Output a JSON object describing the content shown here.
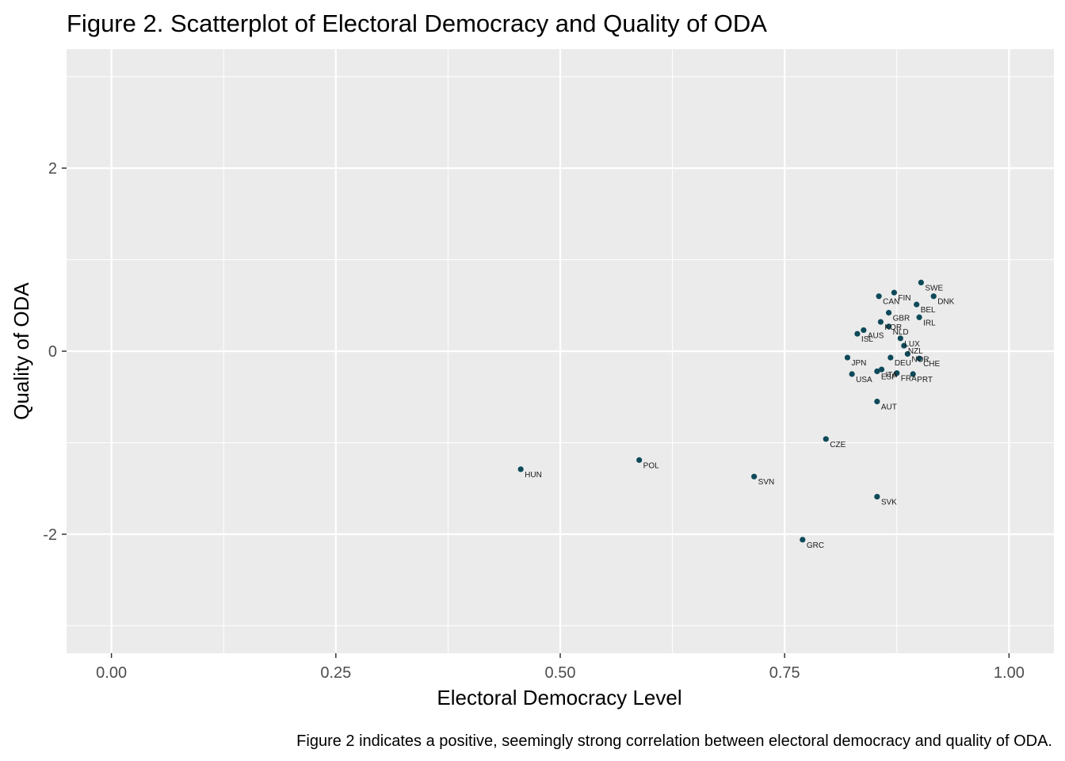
{
  "chart_data": {
    "type": "scatter",
    "title": "Figure 2. Scatterplot of Electoral Democracy and Quality of ODA",
    "xlabel": "Electoral Democracy Level",
    "ylabel": "Quality of ODA",
    "caption": "Figure 2 indicates a positive, seemingly strong correlation between electoral democracy and quality of ODA.",
    "xlim": [
      -0.05,
      1.05
    ],
    "ylim": [
      -3.3,
      3.3
    ],
    "x_ticks": [
      {
        "value": 0,
        "label": "0.00"
      },
      {
        "value": 0.25,
        "label": "0.25"
      },
      {
        "value": 0.5,
        "label": "0.50"
      },
      {
        "value": 0.75,
        "label": "0.75"
      },
      {
        "value": 1,
        "label": "1.00"
      }
    ],
    "y_ticks": [
      {
        "value": -2,
        "label": "-2"
      },
      {
        "value": 0,
        "label": "0"
      },
      {
        "value": 2,
        "label": "2"
      }
    ],
    "grid": true,
    "point_color": "#0e4a59",
    "panel_color": "#ebebeb",
    "points": [
      {
        "label": "SWE",
        "x": 0.902,
        "y": 0.75
      },
      {
        "label": "DNK",
        "x": 0.916,
        "y": 0.6
      },
      {
        "label": "FIN",
        "x": 0.872,
        "y": 0.64
      },
      {
        "label": "CAN",
        "x": 0.855,
        "y": 0.6
      },
      {
        "label": "BEL",
        "x": 0.897,
        "y": 0.51
      },
      {
        "label": "GBR",
        "x": 0.866,
        "y": 0.42
      },
      {
        "label": "IRL",
        "x": 0.9,
        "y": 0.37
      },
      {
        "label": "KOR",
        "x": 0.857,
        "y": 0.32
      },
      {
        "label": "NLD",
        "x": 0.866,
        "y": 0.27
      },
      {
        "label": "ISL",
        "x": 0.831,
        "y": 0.19
      },
      {
        "label": "AUS",
        "x": 0.838,
        "y": 0.23
      },
      {
        "label": "LUX",
        "x": 0.879,
        "y": 0.14
      },
      {
        "label": "NZL",
        "x": 0.883,
        "y": 0.06
      },
      {
        "label": "NOR",
        "x": 0.887,
        "y": -0.03
      },
      {
        "label": "CHE",
        "x": 0.9,
        "y": -0.08
      },
      {
        "label": "JPN",
        "x": 0.82,
        "y": -0.07
      },
      {
        "label": "DEU",
        "x": 0.868,
        "y": -0.07
      },
      {
        "label": "USA",
        "x": 0.825,
        "y": -0.25
      },
      {
        "label": "ESP",
        "x": 0.853,
        "y": -0.22
      },
      {
        "label": "ITA",
        "x": 0.858,
        "y": -0.2
      },
      {
        "label": "FRA",
        "x": 0.875,
        "y": -0.24
      },
      {
        "label": "PRT",
        "x": 0.893,
        "y": -0.25
      },
      {
        "label": "AUT",
        "x": 0.853,
        "y": -0.55
      },
      {
        "label": "CZE",
        "x": 0.796,
        "y": -0.96
      },
      {
        "label": "POL",
        "x": 0.588,
        "y": -1.19
      },
      {
        "label": "HUN",
        "x": 0.456,
        "y": -1.29
      },
      {
        "label": "SVN",
        "x": 0.716,
        "y": -1.37
      },
      {
        "label": "SVK",
        "x": 0.853,
        "y": -1.59
      },
      {
        "label": "GRC",
        "x": 0.77,
        "y": -2.06
      }
    ]
  }
}
